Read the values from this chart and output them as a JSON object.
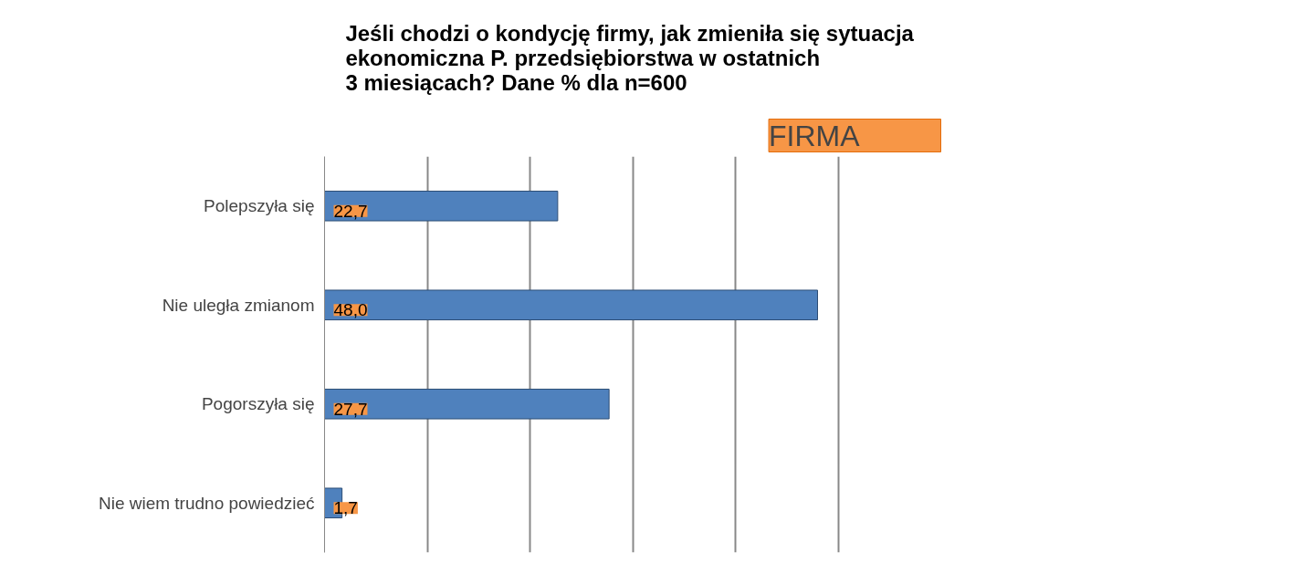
{
  "chart_data": {
    "type": "bar",
    "orientation": "horizontal",
    "title": "Jeśli chodzi o kondycję firmy,  jak zmieniła się sytuacja\nekonomiczna P. przedsiębiorstwa w ostatnich\n3 miesiącach? Dane % dla n=600",
    "annotations": [
      "FIRMA"
    ],
    "categories": [
      "Polepszyła się",
      "Nie uległa zmianom",
      "Pogorszyła się",
      "Nie wiem trudno powiedzieć"
    ],
    "values": [
      22.7,
      48.0,
      27.7,
      1.7
    ],
    "value_labels": [
      "22,7",
      "48,0",
      "27,7",
      "1,7"
    ],
    "color": "#4f81bd",
    "tick_labels": "y",
    "grid": "x"
  }
}
